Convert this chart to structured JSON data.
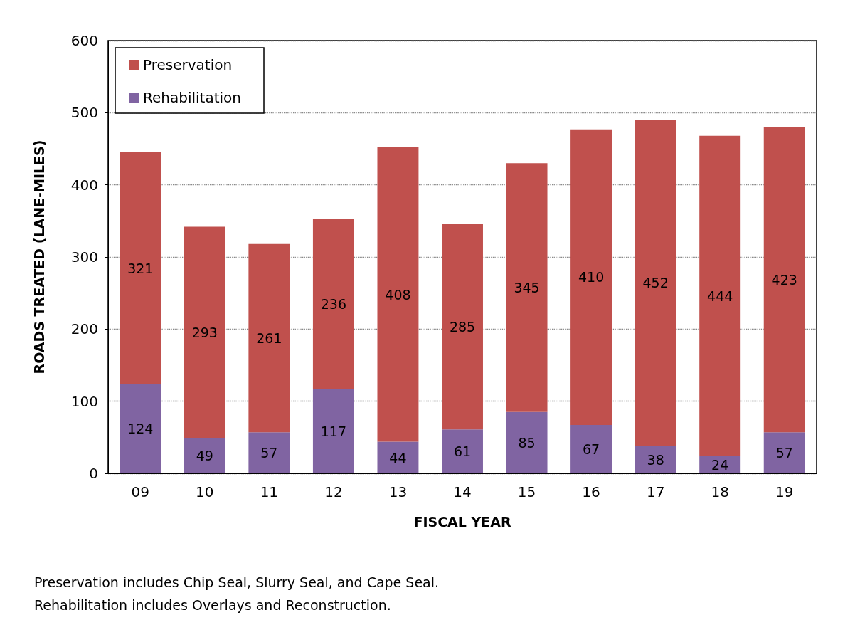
{
  "chart_data": {
    "type": "bar",
    "stacked": true,
    "xlabel": "FISCAL YEAR",
    "ylabel": "ROADS TREATED (LANE-MILES)",
    "categories": [
      "09",
      "10",
      "11",
      "12",
      "13",
      "14",
      "15",
      "16",
      "17",
      "18",
      "19"
    ],
    "series": [
      {
        "name": "Rehabilitation",
        "color": "#8064a2",
        "values": [
          124,
          49,
          57,
          117,
          44,
          61,
          85,
          67,
          38,
          24,
          57
        ]
      },
      {
        "name": "Preservation",
        "color": "#c0504d",
        "values": [
          321,
          293,
          261,
          236,
          408,
          285,
          345,
          410,
          452,
          444,
          423
        ]
      }
    ],
    "ylim": [
      0,
      600
    ],
    "yticks": [
      0,
      100,
      200,
      300,
      400,
      500,
      600
    ],
    "grid": "y",
    "legend": "top left",
    "data_labels": true,
    "annotations": [
      "Preservation includes Chip Seal, Slurry Seal, and Cape Seal.",
      "Rehabilitation includes Overlays and Reconstruction."
    ]
  }
}
